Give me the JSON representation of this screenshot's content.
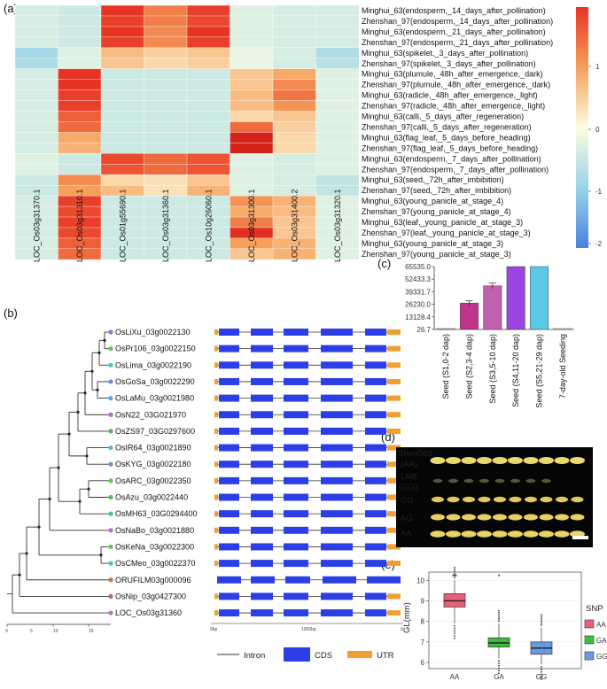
{
  "panels": {
    "a": "(a)",
    "b": "(b)",
    "c": "(c)",
    "d": "(d)",
    "e": "(e)"
  },
  "heatmap": {
    "rows": [
      "Minghui_63(endosperm,_14_days_after_pollination)",
      "Zhenshan_97(endosperm,_14_days_after_pollination)",
      "Minghui_63(endosperm,_21_days_after_pollination)",
      "Zhenshan_97(endosperm,_21_days_after_pollination)",
      "Minghui_63(spikelet,_3_days_after_pollination)",
      "Zhenshan_97(spikelet,_3_days_after_pollination)",
      "Minghui_63(plumule,_48h_after_emergence,_dark)",
      "Zhenshan_97(plumule,_48h_after_emergence,_dark)",
      "Minghui_63(radicle,_48h_after_emergence,_light)",
      "Zhenshan_97(radicle,_48h_after_emergence,_light)",
      "Minghui_63(calli,_5_days_after_regeneration)",
      "Zhenshan_97(calli,_5_days_after_regeneration)",
      "Minghui_63(flag_leaf,_5_days_before_heading)",
      "Zhenshan_97(flag_leaf,_5_days_before_heading)",
      "Minghui_63(endosperm,_7_days_after_pollination)",
      "Zhenshan_97(endosperm,_7_days_after_pollination)",
      "Minghui_63(seed,_72h_after_imbibition)",
      "Zhenshan_97(seed,_72h_after_imbibition)",
      "Minghui_63(young_panicle_at_stage_4)",
      "Zhenshan_97(young_panicle_at_stage_4)",
      "Minghui_63(leaf,_young_panicle_at_stage_3)",
      "Zhenshan_97(leaf,_young_panicle_at_stage_3)",
      "Minghui_63(young_panicle_at_stage_3)",
      "Zhenshan_97(young_panicle_at_stage_3)"
    ],
    "columns": [
      "LOC_Os03g31370.1",
      "LOC_Os03g31310.1",
      "LOC_Os01g55690.1",
      "LOC_Os03g31360.1",
      "LOC_Os10g26060.1",
      "LOC_Os03g31300.1",
      "LOC_Os03g31400.2",
      "LOC_Os03g31320.1"
    ],
    "values": [
      [
        -0.4,
        -0.5,
        2.0,
        1.3,
        1.9,
        -0.3,
        -0.4,
        -0.4
      ],
      [
        -0.4,
        -0.5,
        1.9,
        1.3,
        1.8,
        -0.3,
        -0.4,
        -0.4
      ],
      [
        -0.4,
        -0.5,
        2.0,
        1.2,
        2.0,
        -0.3,
        -0.4,
        -0.4
      ],
      [
        -0.4,
        -0.5,
        1.9,
        1.2,
        1.9,
        -0.3,
        -0.4,
        -0.4
      ],
      [
        -0.9,
        -0.3,
        0.7,
        0.5,
        0.6,
        -0.2,
        -0.4,
        -0.8
      ],
      [
        -0.8,
        -0.3,
        0.6,
        0.4,
        0.5,
        -0.2,
        -0.4,
        -0.7
      ],
      [
        -0.4,
        2.0,
        -0.5,
        -0.5,
        -0.5,
        0.6,
        0.9,
        -0.3
      ],
      [
        -0.4,
        2.0,
        -0.5,
        -0.5,
        -0.5,
        0.6,
        1.2,
        -0.3
      ],
      [
        -0.4,
        1.9,
        -0.5,
        -0.5,
        -0.5,
        0.7,
        1.4,
        -0.3
      ],
      [
        -0.4,
        1.9,
        -0.5,
        -0.5,
        -0.5,
        0.7,
        1.1,
        -0.3
      ],
      [
        -0.4,
        1.6,
        -0.5,
        -0.5,
        -0.5,
        0.4,
        0.6,
        -0.3
      ],
      [
        -0.4,
        1.5,
        -0.5,
        -0.5,
        -0.5,
        1.5,
        0.5,
        -0.3
      ],
      [
        -0.4,
        0.9,
        -0.5,
        -0.5,
        -0.5,
        2.3,
        0.4,
        -0.3
      ],
      [
        -0.4,
        0.8,
        -0.5,
        -0.5,
        -0.5,
        2.3,
        0.4,
        -0.3
      ],
      [
        -0.3,
        -0.5,
        1.8,
        1.5,
        1.7,
        -0.3,
        -0.4,
        -0.3
      ],
      [
        -0.3,
        -0.5,
        1.7,
        1.5,
        1.7,
        -0.3,
        -0.4,
        -0.3
      ],
      [
        -0.5,
        1.2,
        0.4,
        0.3,
        0.6,
        -0.3,
        -0.4,
        -0.6
      ],
      [
        -0.5,
        1.0,
        0.7,
        0.3,
        0.8,
        -0.3,
        -0.4,
        -0.6
      ],
      [
        -0.4,
        1.9,
        -0.5,
        -0.5,
        -0.5,
        1.1,
        0.8,
        -0.3
      ],
      [
        -0.4,
        1.8,
        -0.5,
        -0.5,
        -0.5,
        0.9,
        0.7,
        -0.3
      ],
      [
        -0.4,
        1.9,
        -0.5,
        -0.5,
        -0.5,
        1.3,
        0.6,
        -0.3
      ],
      [
        -0.4,
        1.8,
        -0.5,
        -0.5,
        -0.5,
        2.1,
        0.6,
        -0.3
      ],
      [
        -0.4,
        1.6,
        -0.5,
        -0.5,
        -0.5,
        1.0,
        0.8,
        -0.3
      ],
      [
        -0.4,
        1.5,
        -0.5,
        -0.5,
        -0.5,
        0.6,
        0.8,
        -0.3
      ]
    ],
    "colorbar_ticks": [
      "2",
      "1",
      "0",
      "-1",
      "-2"
    ],
    "colors": {
      "low": "#4a80e0",
      "mid": "#fdfde0",
      "high": "#e83323"
    }
  },
  "tree": {
    "leaves": [
      {
        "name": "OsLiXu_03g0022130",
        "color": "#9b6fd0"
      },
      {
        "name": "OsPr106_03g0022150",
        "color": "#6bbf59"
      },
      {
        "name": "OsLima_03g0022190",
        "color": "#45c4c4"
      },
      {
        "name": "OsGoSa_03g0022290",
        "color": "#6b8ed6"
      },
      {
        "name": "OsLaMu_03g0021980",
        "color": "#5fa9e0"
      },
      {
        "name": "OsN22_03G021970",
        "color": "#b06ec8"
      },
      {
        "name": "OsZS97_03G0297600",
        "color": "#5cb85c"
      },
      {
        "name": "OsIR64_03g0021890",
        "color": "#45c4c4"
      },
      {
        "name": "OsKYG_03g0022180",
        "color": "#6b8ed6"
      },
      {
        "name": "OsARC_03g0022350",
        "color": "#6bbf59"
      },
      {
        "name": "OsAzu_03g0022440",
        "color": "#5cb85c"
      },
      {
        "name": "OsMH63_03G0294400",
        "color": "#45c4a0"
      },
      {
        "name": "OsNaBo_03g0021880",
        "color": "#b06ec8"
      },
      {
        "name": "OsKeNa_03g0022300",
        "color": "#6bbf59"
      },
      {
        "name": "OsCMeo_03g0022370",
        "color": "#45c4c4"
      },
      {
        "name": "ORUFILM03g000096",
        "color": "#c0784a"
      },
      {
        "name": "OsNip_03g0427300",
        "color": "#c06070"
      },
      {
        "name": "LOC_Os03g31360",
        "color": "#c070c0"
      }
    ],
    "axis_ticks": [
      "0",
      "5",
      "10",
      "15"
    ],
    "structure_axis": [
      "0bp",
      "1000bp",
      "0"
    ],
    "legend": {
      "intron": "Intron",
      "cds": "CDS",
      "utr": "UTR"
    },
    "colors": {
      "cds": "#2c3fe6",
      "utr": "#f0a030",
      "intron": "#333333"
    }
  },
  "chart_data": {
    "type": "bar",
    "categories": [
      "Seed (S1,0-2 dap)",
      "Seed (S2,3-4 dap)",
      "Seed (S3,5-10 dap)",
      "Seed (S4,11-20 dap)",
      "Seed (S5,21-29 dap)",
      "7-day-old Seeding"
    ],
    "values": [
      26.7,
      27500,
      45500,
      65535,
      65535,
      26.7
    ],
    "errors": [
      0,
      2300,
      2800,
      0,
      0,
      0
    ],
    "yticks": [
      "65535.0",
      "52433.3",
      "39331.7",
      "26230.0",
      "13128.4",
      "26.7"
    ],
    "ylim": [
      0,
      65535
    ],
    "colors": [
      "#e0b0c8",
      "#c0348c",
      "#c060b0",
      "#9b45e0",
      "#5bc8e8",
      "#e0e0e0"
    ]
  },
  "grains": {
    "rows": [
      "Shen08S\n(AA)",
      "LM8\n(GG)",
      "GG",
      "AG",
      "AA"
    ],
    "labels": [
      "Shen08S",
      "(AA)",
      "LM8",
      "(GG)",
      "GG",
      "AG",
      "AA"
    ]
  },
  "boxplot": {
    "ylabel": "GL(mm)",
    "yticks": [
      "10",
      "9",
      "8",
      "7",
      "6"
    ],
    "groups": [
      {
        "name": "AA",
        "q1": 8.7,
        "median": 9.0,
        "q3": 9.35,
        "lo": 7.9,
        "hi": 10.0,
        "color": "#e8607a",
        "sig": "**"
      },
      {
        "name": "GA",
        "q1": 6.75,
        "median": 6.95,
        "q3": 7.2,
        "lo": 6.2,
        "hi": 7.9,
        "color": "#3cc03c",
        "sig": "*"
      },
      {
        "name": "GG",
        "q1": 6.4,
        "median": 6.7,
        "q3": 7.0,
        "lo": 5.9,
        "hi": 7.7,
        "color": "#6a9ae0",
        "sig": ""
      }
    ],
    "legend_title": "SNP",
    "legend": [
      "AA",
      "GA",
      "GG"
    ]
  }
}
